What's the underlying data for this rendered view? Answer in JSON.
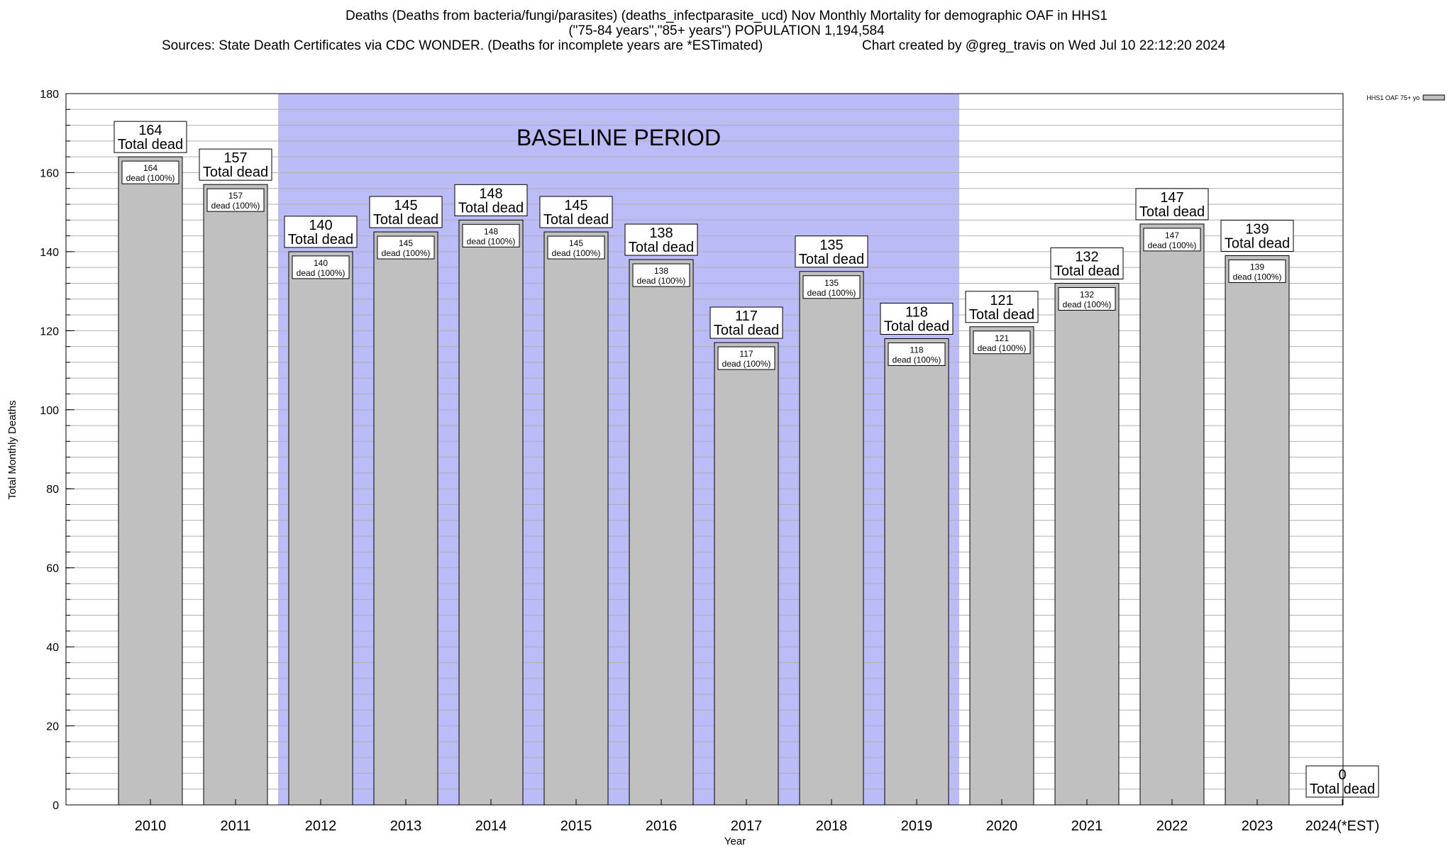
{
  "title": {
    "line1": "Deaths (Deaths from bacteria/fungi/parasites) (deaths_infectparasite_ucd) Nov Monthly Mortality for demographic OAF in HHS1",
    "line2": "(\"75-84 years\",\"85+ years\") POPULATION 1,194,584",
    "sources": "Sources: State Death Certificates via CDC WONDER. (Deaths for incomplete years are *ESTimated)",
    "credit": "Chart created by @greg_travis on Wed Jul 10 22:12:20 2024"
  },
  "chart_data": {
    "type": "bar",
    "xlabel": "Year",
    "ylabel": "Total Monthly Deaths",
    "ylim": [
      0,
      180
    ],
    "yticks": [
      0,
      20,
      40,
      60,
      80,
      100,
      120,
      140,
      160,
      180
    ],
    "categories": [
      "2010",
      "2011",
      "2012",
      "2013",
      "2014",
      "2015",
      "2016",
      "2017",
      "2018",
      "2019",
      "2020",
      "2021",
      "2022",
      "2023",
      "2024(*EST)"
    ],
    "series": [
      {
        "name": "HHS1 OAF 75+ yo",
        "values": [
          164,
          157,
          140,
          145,
          148,
          145,
          138,
          117,
          135,
          118,
          121,
          132,
          147,
          139,
          0
        ]
      }
    ],
    "total_label": "Total dead",
    "inner_label": "dead (100%)",
    "baseline": {
      "label": "BASELINE PERIOD",
      "from": "2012",
      "to": "2019"
    },
    "legend_position": "top-right",
    "grid": true,
    "colors": {
      "bar": "#c0c0c0",
      "baseline": "#bbbbf8",
      "grid": "#b0b0b0"
    }
  }
}
